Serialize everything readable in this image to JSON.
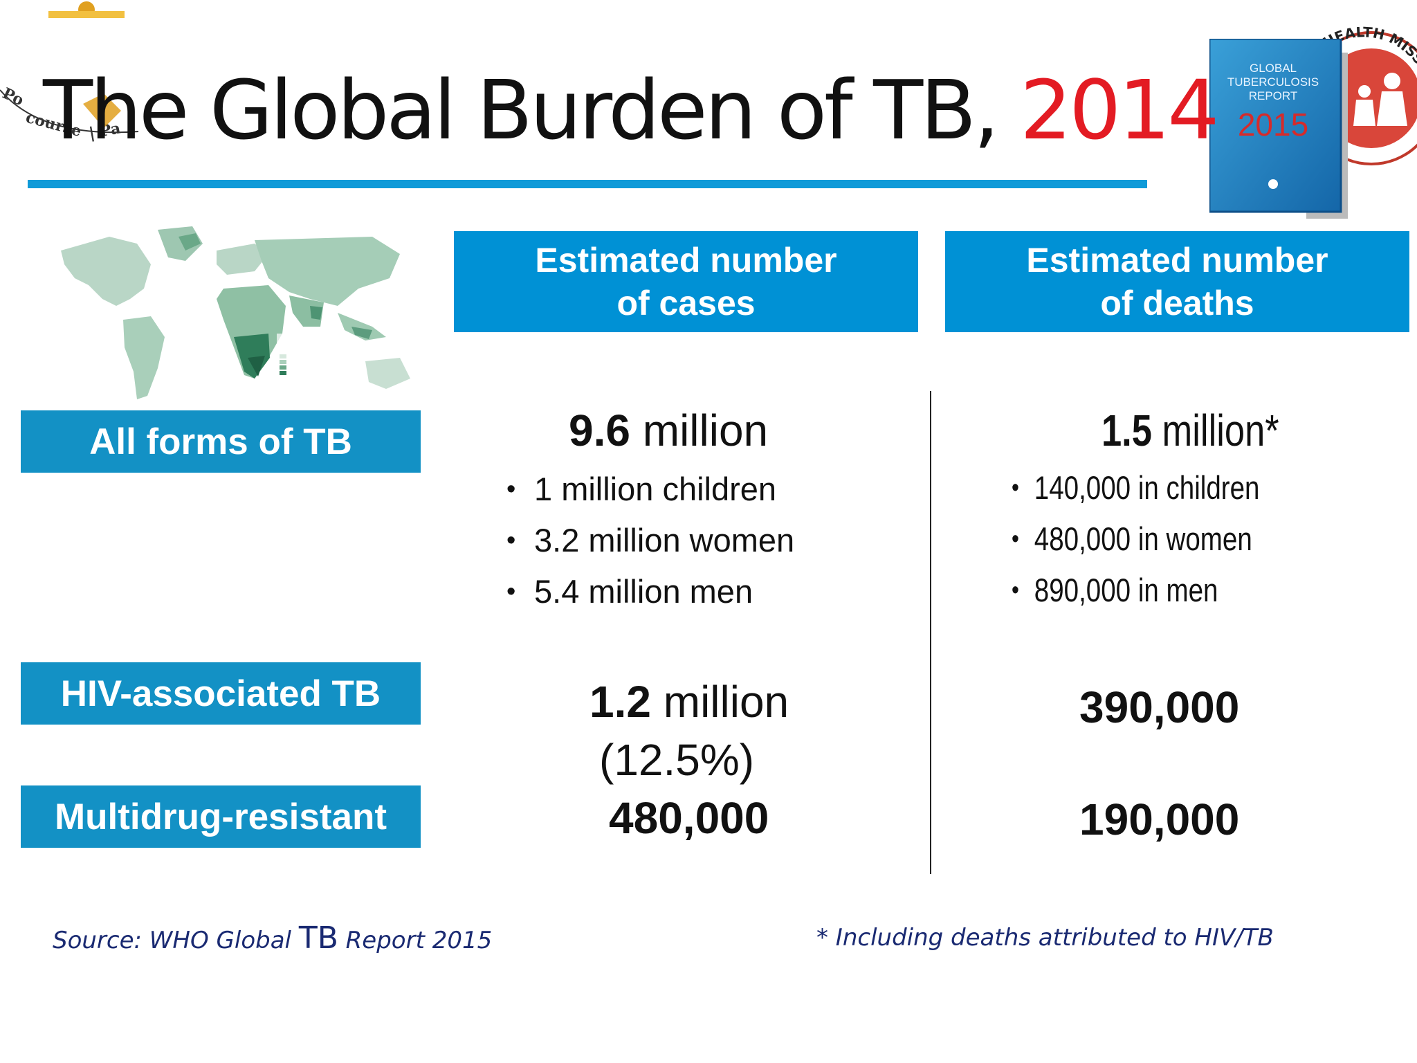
{
  "slide": {
    "title_main": "The Global Burden of TB, ",
    "title_year": "2014",
    "col_headers": {
      "cases_line1": "Estimated number",
      "cases_line2": "of cases",
      "deaths_line1": "Estimated number",
      "deaths_line2": "of deaths"
    },
    "rows": {
      "all_forms": {
        "label": "All forms of TB",
        "cases_value": "9.6",
        "cases_unit": " million",
        "cases_breakdown": [
          "1 million children",
          "3.2 million women",
          "5.4 million men"
        ],
        "deaths_value": "1.5",
        "deaths_unit": " million*",
        "deaths_breakdown": [
          "140,000 in children",
          "480,000 in women",
          "890,000 in men"
        ]
      },
      "hiv": {
        "label": "HIV-associated TB",
        "cases_value": "1.2",
        "cases_unit": " million",
        "cases_pct": "(12.5%)",
        "deaths_value": "390,000"
      },
      "mdr": {
        "label": "Multidrug-resistant",
        "cases_value": "480,000",
        "deaths_value": "190,000"
      }
    },
    "source_prefix": "Source: WHO Global ",
    "source_tb": "TB",
    "source_suffix": " Report 2015",
    "footnote": "* Including deaths attributed to HIV/TB"
  },
  "report_cover": {
    "line1": "GLOBAL",
    "line2": "TUBERCULOSIS",
    "line3": "REPORT",
    "year": "2015"
  },
  "logos": {
    "left": "Po...course | Pa...",
    "right": "...L HEALTH MISSION"
  },
  "colors": {
    "accent_blue": "#0091d5",
    "row_label_blue": "#1391c5",
    "title_rule": "#0f9ad8",
    "year_red": "#e31b23",
    "footnote_navy": "#1a2a72"
  },
  "icons": [
    "world-map-image",
    "who-report-cover-image",
    "left-emblem-logo",
    "nhm-logo"
  ]
}
